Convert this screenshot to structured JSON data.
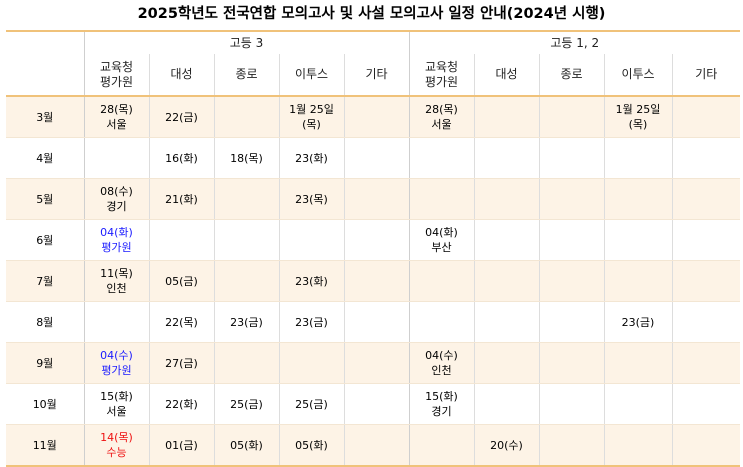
{
  "title": "2025학년도 전국연합 모의고사 및 사설 모의고사 일정 안내(2024년 시행)",
  "groups": [
    "고등 3",
    "고등 1, 2"
  ],
  "columns": [
    "교육청\n평가원",
    "대성",
    "종로",
    "이투스",
    "기타",
    "교육청\n평가원",
    "대성",
    "종로",
    "이투스",
    "기타"
  ],
  "colors": {
    "border": "#f0c27a",
    "shade": "#fdf3e6",
    "blue": "#1a1aff",
    "red": "#ee1111"
  },
  "rows": [
    {
      "month": "3월",
      "cells": [
        {
          "text": "28(목)\n서울"
        },
        {
          "text": "22(금)"
        },
        {
          "text": ""
        },
        {
          "text": "1월 25일\n(목)"
        },
        {
          "text": ""
        },
        {
          "text": "28(목)\n서울"
        },
        {
          "text": ""
        },
        {
          "text": ""
        },
        {
          "text": "1월 25일\n(목)"
        },
        {
          "text": ""
        }
      ]
    },
    {
      "month": "4월",
      "cells": [
        {
          "text": ""
        },
        {
          "text": "16(화)"
        },
        {
          "text": "18(목)"
        },
        {
          "text": "23(화)"
        },
        {
          "text": ""
        },
        {
          "text": ""
        },
        {
          "text": ""
        },
        {
          "text": ""
        },
        {
          "text": ""
        },
        {
          "text": ""
        }
      ]
    },
    {
      "month": "5월",
      "cells": [
        {
          "text": "08(수)\n경기"
        },
        {
          "text": "21(화)"
        },
        {
          "text": ""
        },
        {
          "text": "23(목)"
        },
        {
          "text": ""
        },
        {
          "text": ""
        },
        {
          "text": ""
        },
        {
          "text": ""
        },
        {
          "text": ""
        },
        {
          "text": ""
        }
      ]
    },
    {
      "month": "6월",
      "cells": [
        {
          "text": "04(화)\n평가원",
          "color": "blue"
        },
        {
          "text": ""
        },
        {
          "text": ""
        },
        {
          "text": ""
        },
        {
          "text": ""
        },
        {
          "text": "04(화)\n부산"
        },
        {
          "text": ""
        },
        {
          "text": ""
        },
        {
          "text": ""
        },
        {
          "text": ""
        }
      ]
    },
    {
      "month": "7월",
      "cells": [
        {
          "text": "11(목)\n인천"
        },
        {
          "text": "05(금)"
        },
        {
          "text": ""
        },
        {
          "text": "23(화)"
        },
        {
          "text": ""
        },
        {
          "text": ""
        },
        {
          "text": ""
        },
        {
          "text": ""
        },
        {
          "text": ""
        },
        {
          "text": ""
        }
      ]
    },
    {
      "month": "8월",
      "cells": [
        {
          "text": ""
        },
        {
          "text": "22(목)"
        },
        {
          "text": "23(금)"
        },
        {
          "text": "23(금)"
        },
        {
          "text": ""
        },
        {
          "text": ""
        },
        {
          "text": ""
        },
        {
          "text": ""
        },
        {
          "text": "23(금)"
        },
        {
          "text": ""
        }
      ]
    },
    {
      "month": "9월",
      "cells": [
        {
          "text": "04(수)\n평가원",
          "color": "blue"
        },
        {
          "text": "27(금)"
        },
        {
          "text": ""
        },
        {
          "text": ""
        },
        {
          "text": ""
        },
        {
          "text": "04(수)\n인천"
        },
        {
          "text": ""
        },
        {
          "text": ""
        },
        {
          "text": ""
        },
        {
          "text": ""
        }
      ]
    },
    {
      "month": "10월",
      "cells": [
        {
          "text": "15(화)\n서울"
        },
        {
          "text": "22(화)"
        },
        {
          "text": "25(금)"
        },
        {
          "text": "25(금)"
        },
        {
          "text": ""
        },
        {
          "text": "15(화)\n경기"
        },
        {
          "text": ""
        },
        {
          "text": ""
        },
        {
          "text": ""
        },
        {
          "text": ""
        }
      ]
    },
    {
      "month": "11월",
      "cells": [
        {
          "text": "14(목)\n수능",
          "color": "red"
        },
        {
          "text": "01(금)"
        },
        {
          "text": "05(화)"
        },
        {
          "text": "05(화)"
        },
        {
          "text": ""
        },
        {
          "text": ""
        },
        {
          "text": "20(수)"
        },
        {
          "text": ""
        },
        {
          "text": ""
        },
        {
          "text": ""
        }
      ]
    }
  ]
}
